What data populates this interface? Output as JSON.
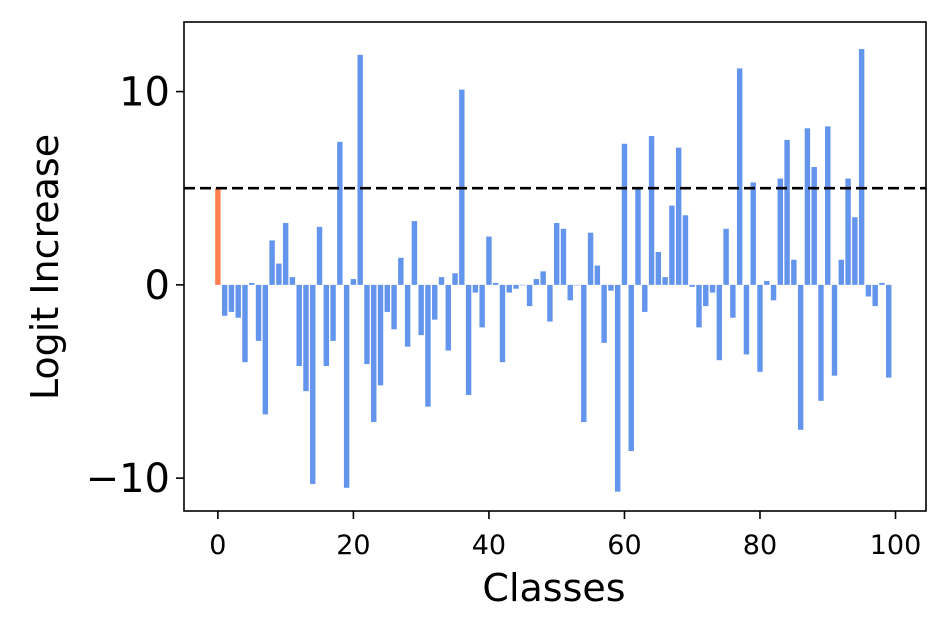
{
  "chart_data": {
    "type": "bar",
    "xlabel": "Classes",
    "ylabel": "Logit Increase",
    "xlim": [
      -5,
      104.5
    ],
    "ylim": [
      -11.7,
      13.6
    ],
    "x_ticks": [
      0,
      20,
      40,
      60,
      80,
      100
    ],
    "x_tick_labels": [
      "0",
      "20",
      "40",
      "60",
      "80",
      "100"
    ],
    "y_ticks": [
      -10,
      0,
      10
    ],
    "y_tick_labels": [
      "−10",
      "0",
      "10"
    ],
    "threshold": 5.0,
    "highlight_index": 0,
    "colors": {
      "bar": "#6495ED",
      "highlight": "#FF7F50",
      "threshold": "#000000"
    },
    "x": [
      0,
      1,
      2,
      3,
      4,
      5,
      6,
      7,
      8,
      9,
      10,
      11,
      12,
      13,
      14,
      15,
      16,
      17,
      18,
      19,
      20,
      21,
      22,
      23,
      24,
      25,
      26,
      27,
      28,
      29,
      30,
      31,
      32,
      33,
      34,
      35,
      36,
      37,
      38,
      39,
      40,
      41,
      42,
      43,
      44,
      45,
      46,
      47,
      48,
      49,
      50,
      51,
      52,
      53,
      54,
      55,
      56,
      57,
      58,
      59,
      60,
      61,
      62,
      63,
      64,
      65,
      66,
      67,
      68,
      69,
      70,
      71,
      72,
      73,
      74,
      75,
      76,
      77,
      78,
      79,
      80,
      81,
      82,
      83,
      84,
      85,
      86,
      87,
      88,
      89,
      90,
      91,
      92,
      93,
      94,
      95,
      96,
      97,
      98,
      99
    ],
    "values": [
      5.0,
      -1.6,
      -1.4,
      -1.7,
      -4.0,
      0.1,
      -2.9,
      -6.7,
      2.3,
      1.1,
      3.2,
      0.4,
      -4.2,
      -5.5,
      -10.3,
      3.0,
      -4.2,
      -2.9,
      7.4,
      -10.5,
      0.3,
      11.9,
      -4.1,
      -7.1,
      -5.2,
      -1.4,
      -2.3,
      1.4,
      -3.2,
      3.3,
      -2.6,
      -6.3,
      -1.8,
      0.4,
      -3.4,
      0.6,
      10.1,
      -5.7,
      -0.4,
      -2.2,
      2.5,
      0.1,
      -4.0,
      -0.4,
      -0.2,
      0.0,
      -1.1,
      0.3,
      0.7,
      -1.9,
      3.2,
      2.9,
      -0.8,
      0.0,
      -7.1,
      2.7,
      1.0,
      -3.0,
      -0.3,
      -10.7,
      7.3,
      -8.6,
      5.0,
      -1.4,
      7.7,
      1.7,
      0.4,
      4.1,
      7.1,
      3.6,
      -0.1,
      -2.2,
      -1.1,
      -0.4,
      -3.9,
      2.9,
      -1.7,
      11.2,
      -3.6,
      5.3,
      -4.5,
      0.2,
      -0.8,
      5.5,
      7.5,
      1.3,
      -7.5,
      8.1,
      6.1,
      -6.0,
      8.2,
      -4.7,
      1.3,
      5.5,
      3.5,
      12.2,
      -0.6,
      -1.1,
      0.1,
      -4.8
    ]
  }
}
